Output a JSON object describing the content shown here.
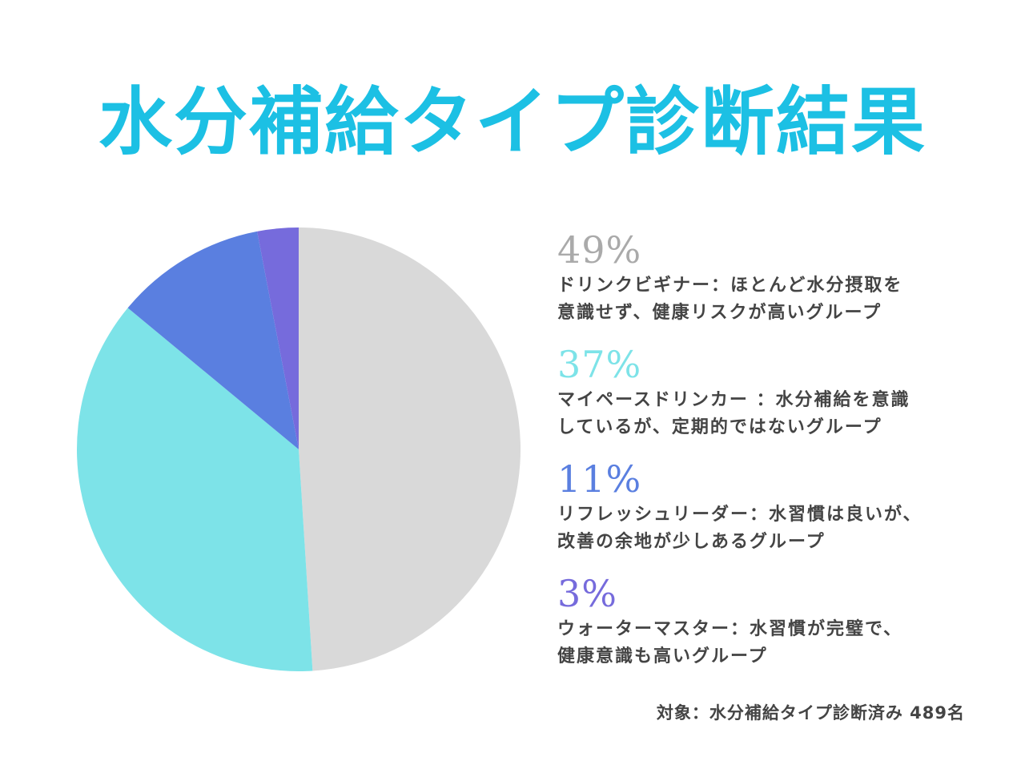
{
  "title": "水分補給タイプ診断結果",
  "colors": {
    "title": "#1cc0e4",
    "text": "#444444"
  },
  "chart_data": {
    "type": "pie",
    "start_angle_deg": 0,
    "direction": "clockwise",
    "slices": [
      {
        "value": 49,
        "label": "49%",
        "color": "#d9d9d9",
        "desc_lines": [
          "ドリンクビギナー：ほとんど水分摂取を",
          "意識せず、健康リスクが高いグループ"
        ]
      },
      {
        "value": 37,
        "label": "37%",
        "color": "#7de3e8",
        "desc_lines": [
          "マイペースドリンカー ：水分補給を意識",
          "しているが、定期的ではないグループ"
        ]
      },
      {
        "value": 11,
        "label": "11%",
        "color": "#5a7fe0",
        "desc_lines": [
          "リフレッシュリーダー：水習慣は良いが、",
          "改善の余地が少しあるグループ"
        ]
      },
      {
        "value": 3,
        "label": "3%",
        "color": "#766bdc",
        "desc_lines": [
          "ウォーターマスター：水習慣が完璧で、",
          "健康意識も高いグループ"
        ]
      }
    ]
  },
  "footnote": "対象：水分補給タイプ診断済み 489名"
}
